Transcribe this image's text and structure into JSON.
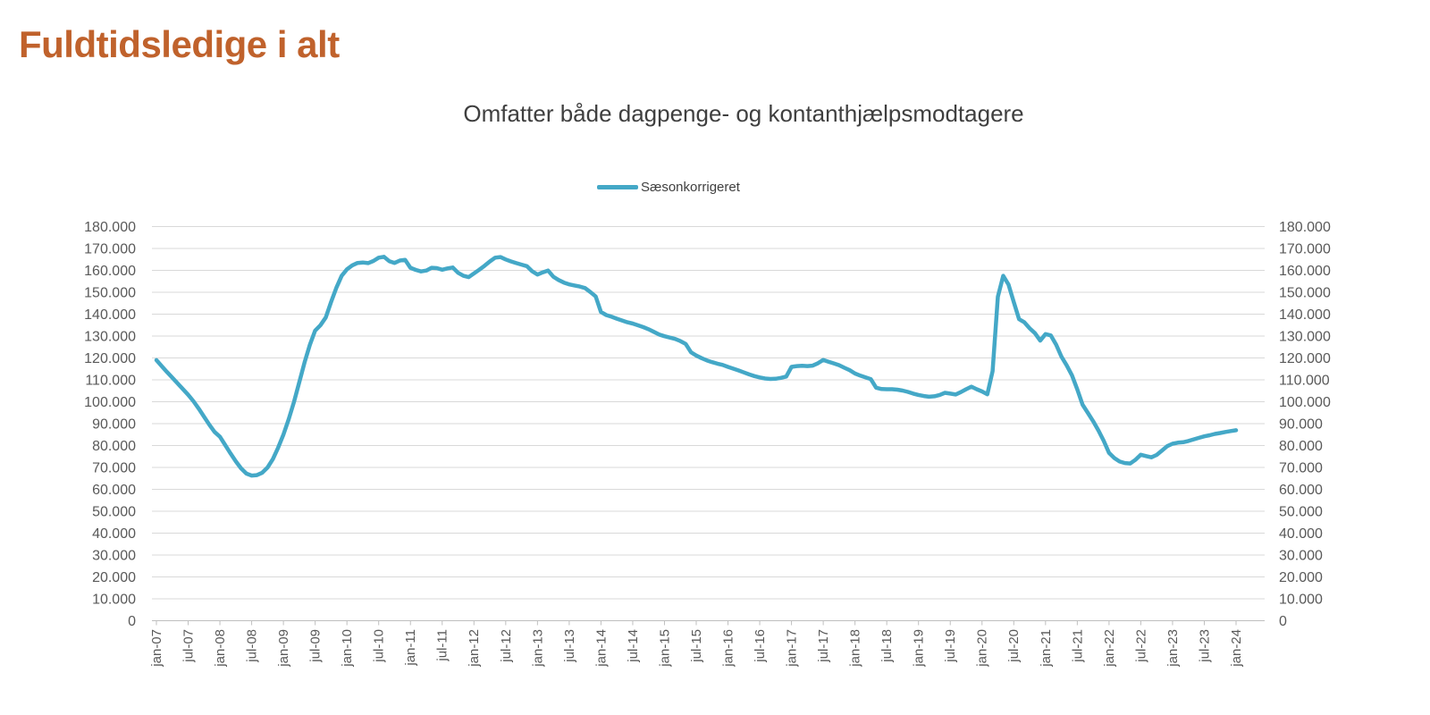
{
  "header": {
    "title": "Fuldtidsledige i alt"
  },
  "chart": {
    "subtitle": "Omfatter både dagpenge- og kontanthjælpsmodtagere",
    "legend_label": "Sæsonkorrigeret"
  },
  "colors": {
    "title": "#C0622C",
    "subtitle": "#3F3F3F",
    "axis_text": "#595959",
    "gridline": "#D9D9D9",
    "axis_line": "#BFBFBF",
    "series": "#44A8C7",
    "background": "#FFFFFF"
  },
  "chart_data": {
    "type": "line",
    "title": "Omfatter både dagpenge- og kontanthjælpsmodtagere",
    "legend_position": "top-center",
    "grid": "horizontal",
    "dual_y_axis": true,
    "ylim": [
      0,
      180000
    ],
    "ytick_step": 10000,
    "ytick_format": "dot-thousands (da-DK), e.g. 180.000",
    "x_frequency": "monthly",
    "x_range": [
      "jan-07",
      "jan-24"
    ],
    "xtick_labels": [
      "jan-07",
      "jul-07",
      "jan-08",
      "jul-08",
      "jan-09",
      "jul-09",
      "jan-10",
      "jul-10",
      "jan-11",
      "jul-11",
      "jan-12",
      "jul-12",
      "jan-13",
      "jul-13",
      "jan-14",
      "jul-14",
      "jan-15",
      "jul-15",
      "jan-16",
      "jul-16",
      "jan-17",
      "jul-17",
      "jan-18",
      "jul-18",
      "jan-19",
      "jul-19",
      "jan-20",
      "jul-20",
      "jan-21",
      "jul-21",
      "jan-22",
      "jul-22",
      "jan-23",
      "jul-23",
      "jan-24"
    ],
    "series": [
      {
        "name": "Sæsonkorrigeret",
        "color": "#44A8C7",
        "x_start": "jan-07",
        "values": [
          119000,
          116300,
          113600,
          111000,
          108400,
          105800,
          103200,
          100200,
          96800,
          93200,
          89500,
          86200,
          84000,
          80200,
          76400,
          72800,
          69600,
          67200,
          66300,
          66500,
          67600,
          70000,
          73800,
          79000,
          85000,
          92000,
          100000,
          109000,
          118000,
          126000,
          132500,
          135000,
          138500,
          145500,
          152000,
          157500,
          160500,
          162300,
          163400,
          163600,
          163300,
          164300,
          165800,
          166200,
          164200,
          163400,
          164500,
          164800,
          161200,
          160200,
          159500,
          159900,
          161200,
          161000,
          160300,
          160900,
          161300,
          158900,
          157500,
          156900,
          158600,
          160300,
          162100,
          164100,
          165800,
          166100,
          165000,
          164100,
          163300,
          162600,
          161900,
          159600,
          158100,
          159100,
          159900,
          157100,
          155600,
          154400,
          153600,
          153100,
          152600,
          151900,
          150100,
          148100,
          141000,
          139600,
          138800,
          137900,
          137100,
          136300,
          135700,
          134900,
          134100,
          133100,
          131900,
          130700,
          129900,
          129300,
          128700,
          127700,
          126400,
          122600,
          121100,
          119900,
          118900,
          118100,
          117400,
          116800,
          115900,
          115100,
          114300,
          113400,
          112500,
          111700,
          111100,
          110600,
          110400,
          110500,
          110900,
          111500,
          115900,
          116300,
          116400,
          116300,
          116500,
          117600,
          119100,
          118300,
          117500,
          116700,
          115500,
          114400,
          112900,
          111900,
          111100,
          110300,
          106400,
          105800,
          105700,
          105700,
          105500,
          105100,
          104500,
          103700,
          103100,
          102600,
          102300,
          102500,
          103100,
          104100,
          103700,
          103300,
          104400,
          105700,
          106900,
          105700,
          104700,
          103400,
          114000,
          148000,
          157500,
          153500,
          145500,
          137700,
          136300,
          133500,
          131300,
          127900,
          130900,
          130300,
          126100,
          120600,
          116600,
          112100,
          105600,
          98600,
          94900,
          91100,
          86900,
          82100,
          76600,
          74300,
          72700,
          72000,
          71800,
          73500,
          75800,
          75200,
          74600,
          75700,
          77700,
          79700,
          80800,
          81300,
          81500,
          82100,
          82800,
          83500,
          84200,
          84700,
          85300,
          85700,
          86200,
          86600,
          87000
        ]
      }
    ]
  }
}
